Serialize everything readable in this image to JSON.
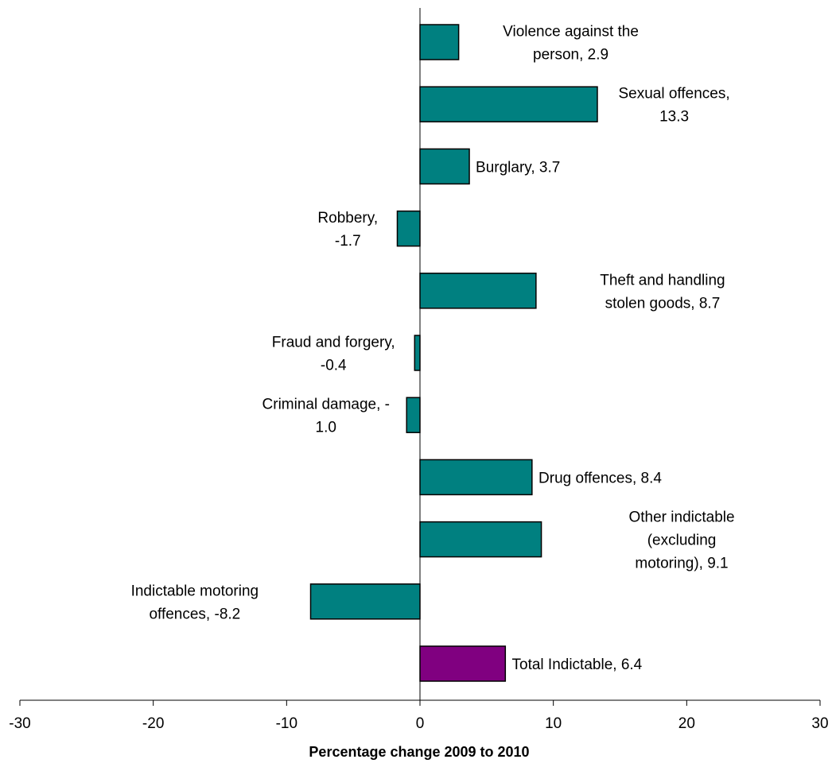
{
  "chart_data": {
    "type": "bar",
    "orientation": "horizontal",
    "title": "",
    "xlabel": "Percentage change 2009 to 2010",
    "ylabel": "",
    "xlim": [
      -30,
      30
    ],
    "x_ticks": [
      -30,
      -20,
      -10,
      0,
      10,
      20,
      30
    ],
    "tick_labels": [
      "-30",
      "-20",
      "-10",
      "0",
      "10",
      "20",
      "30"
    ],
    "grid": false,
    "colors": {
      "default": "#008080",
      "total": "#800080",
      "edge": "#000000"
    },
    "bars": [
      {
        "category": "Violence against the person",
        "value": 2.9,
        "label_lines": [
          "Violence against the",
          "person, 2.9"
        ],
        "color": "#008080"
      },
      {
        "category": "Sexual offences",
        "value": 13.3,
        "label_lines": [
          "Sexual offences,",
          "13.3"
        ],
        "color": "#008080"
      },
      {
        "category": "Burglary",
        "value": 3.7,
        "label_lines": [
          "Burglary, 3.7"
        ],
        "color": "#008080"
      },
      {
        "category": "Robbery",
        "value": -1.7,
        "label_lines": [
          "Robbery,",
          "-1.7"
        ],
        "color": "#008080"
      },
      {
        "category": "Theft and handling stolen goods",
        "value": 8.7,
        "label_lines": [
          "Theft and handling",
          "stolen goods, 8.7"
        ],
        "color": "#008080"
      },
      {
        "category": "Fraud and forgery",
        "value": -0.4,
        "label_lines": [
          "Fraud and forgery,",
          "-0.4"
        ],
        "color": "#008080"
      },
      {
        "category": "Criminal damage",
        "value": -1.0,
        "label_lines": [
          "Criminal damage, -",
          "1.0"
        ],
        "color": "#008080"
      },
      {
        "category": "Drug offences",
        "value": 8.4,
        "label_lines": [
          "Drug offences, 8.4"
        ],
        "color": "#008080"
      },
      {
        "category": "Other indictable (excluding motoring)",
        "value": 9.1,
        "label_lines": [
          "Other indictable",
          "(excluding",
          "motoring), 9.1"
        ],
        "color": "#008080"
      },
      {
        "category": "Indictable motoring offences",
        "value": -8.2,
        "label_lines": [
          "Indictable motoring",
          "offences, -8.2"
        ],
        "color": "#008080"
      },
      {
        "category": "Total Indictable",
        "value": 6.4,
        "label_lines": [
          "Total Indictable, 6.4"
        ],
        "color": "#800080"
      }
    ]
  }
}
